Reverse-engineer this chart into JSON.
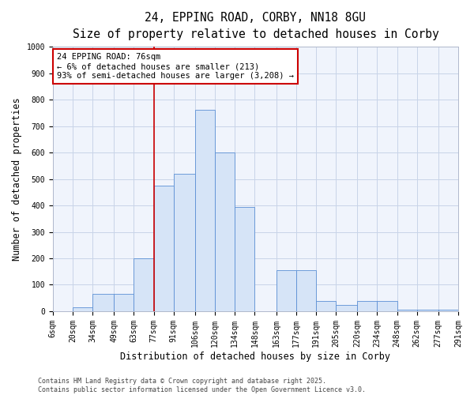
{
  "title_line1": "24, EPPING ROAD, CORBY, NN18 8GU",
  "title_line2": "Size of property relative to detached houses in Corby",
  "xlabel": "Distribution of detached houses by size in Corby",
  "ylabel": "Number of detached properties",
  "bin_labels": [
    "6sqm",
    "20sqm",
    "34sqm",
    "49sqm",
    "63sqm",
    "77sqm",
    "91sqm",
    "106sqm",
    "120sqm",
    "134sqm",
    "148sqm",
    "163sqm",
    "177sqm",
    "191sqm",
    "205sqm",
    "220sqm",
    "234sqm",
    "248sqm",
    "262sqm",
    "277sqm",
    "291sqm"
  ],
  "bin_edges": [
    6,
    20,
    34,
    49,
    63,
    77,
    91,
    106,
    120,
    134,
    148,
    163,
    177,
    191,
    205,
    220,
    234,
    248,
    262,
    277,
    291
  ],
  "bar_heights": [
    0,
    15,
    65,
    65,
    200,
    475,
    520,
    760,
    600,
    395,
    0,
    155,
    155,
    40,
    25,
    40,
    40,
    5,
    5,
    5
  ],
  "bar_face_color": "#d6e4f7",
  "bar_edge_color": "#5b8fd4",
  "grid_color": "#c8d4e8",
  "bg_color": "#f0f4fc",
  "vline_x": 77,
  "vline_color": "#cc0000",
  "annotation_text": "24 EPPING ROAD: 76sqm\n← 6% of detached houses are smaller (213)\n93% of semi-detached houses are larger (3,208) →",
  "annotation_box_color": "#ffffff",
  "annotation_box_edge": "#cc0000",
  "ylim": [
    0,
    1000
  ],
  "yticks": [
    0,
    100,
    200,
    300,
    400,
    500,
    600,
    700,
    800,
    900,
    1000
  ],
  "footnote": "Contains HM Land Registry data © Crown copyright and database right 2025.\nContains public sector information licensed under the Open Government Licence v3.0.",
  "title_fontsize": 10.5,
  "subtitle_fontsize": 9.5,
  "axis_label_fontsize": 8.5,
  "tick_fontsize": 7,
  "annotation_fontsize": 7.5,
  "footnote_fontsize": 6
}
